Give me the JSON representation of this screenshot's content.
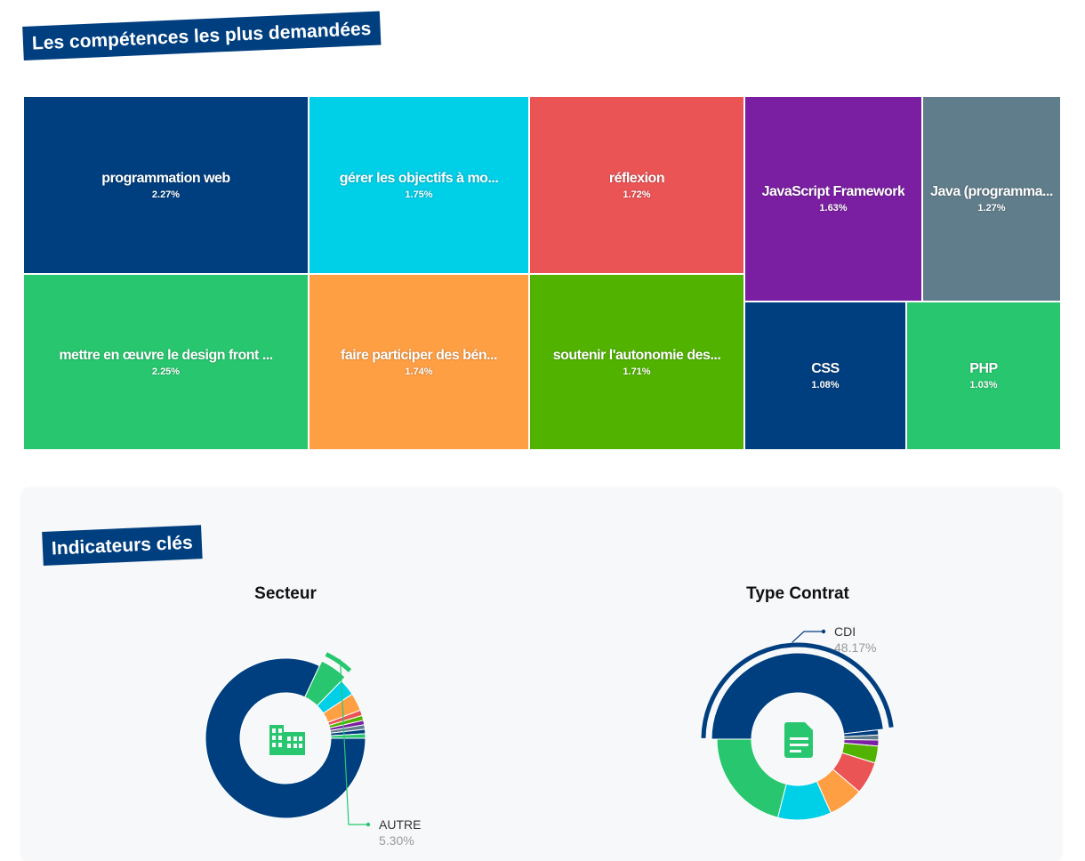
{
  "sections": {
    "skills_title": "Les compétences les plus demandées",
    "kpi_title": "Indicateurs clés"
  },
  "chart_data": [
    {
      "type": "treemap",
      "title": "Les compétences les plus demandées",
      "items": [
        {
          "label": "programmation web",
          "value": "2.27%",
          "color": "#003f7f"
        },
        {
          "label": "mettre en œuvre le design front ...",
          "value": "2.25%",
          "color": "#28c76f"
        },
        {
          "label": "gérer les objectifs à mo...",
          "value": "1.75%",
          "color": "#00cfe8"
        },
        {
          "label": "faire participer des bén...",
          "value": "1.74%",
          "color": "#ff9f43"
        },
        {
          "label": "réflexion",
          "value": "1.72%",
          "color": "#ea5455"
        },
        {
          "label": "soutenir l'autonomie des...",
          "value": "1.71%",
          "color": "#51b300"
        },
        {
          "label": "JavaScript Framework",
          "value": "1.63%",
          "color": "#7b1fa2"
        },
        {
          "label": "Java (programma...",
          "value": "1.27%",
          "color": "#607d8b"
        },
        {
          "label": "CSS",
          "value": "1.08%",
          "color": "#003f7f"
        },
        {
          "label": "PHP",
          "value": "1.03%",
          "color": "#28c76f"
        }
      ]
    },
    {
      "type": "pie",
      "title": "Secteur",
      "icon": "building-icon",
      "highlight": {
        "label": "AUTRE",
        "value": "5.30%"
      },
      "slices": [
        {
          "value": 82.0,
          "color": "#003f7f"
        },
        {
          "value": 5.3,
          "color": "#28c76f"
        },
        {
          "value": 3.4,
          "color": "#00cfe8"
        },
        {
          "value": 3.6,
          "color": "#ff9f43"
        },
        {
          "value": 1.1,
          "color": "#ea5455"
        },
        {
          "value": 1.0,
          "color": "#51b300"
        },
        {
          "value": 0.9,
          "color": "#7b1fa2"
        },
        {
          "value": 0.9,
          "color": "#607d8b"
        },
        {
          "value": 0.9,
          "color": "#003f7f"
        },
        {
          "value": 0.9,
          "color": "#28c76f"
        }
      ]
    },
    {
      "type": "pie",
      "title": "Type Contrat",
      "icon": "document-icon",
      "highlight": {
        "label": "CDI",
        "value": "48.17%"
      },
      "slices": [
        {
          "value": 48.17,
          "color": "#003f7f"
        },
        {
          "value": 1.0,
          "color": "#003f7f"
        },
        {
          "value": 1.0,
          "color": "#607d8b"
        },
        {
          "value": 1.2,
          "color": "#7b1fa2"
        },
        {
          "value": 3.4,
          "color": "#51b300"
        },
        {
          "value": 6.5,
          "color": "#ea5455"
        },
        {
          "value": 7.0,
          "color": "#ff9f43"
        },
        {
          "value": 10.7,
          "color": "#00cfe8"
        },
        {
          "value": 21.03,
          "color": "#28c76f"
        }
      ]
    }
  ]
}
